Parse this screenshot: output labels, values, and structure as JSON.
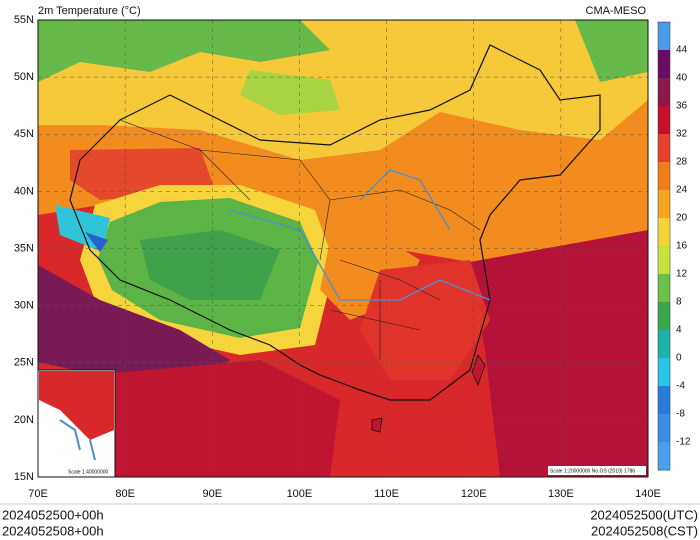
{
  "header": {
    "title": "2m Temperature (°C)",
    "source": "CMA-MESO"
  },
  "map": {
    "lat_labels": [
      "55N",
      "50N",
      "45N",
      "40N",
      "35N",
      "30N",
      "25N",
      "20N",
      "15N"
    ],
    "lon_labels": [
      "70E",
      "80E",
      "90E",
      "100E",
      "110E",
      "120E",
      "130E",
      "140E"
    ],
    "inset_scale": "Scale 1:40000000",
    "scale_note": "Scale 1:20000000 No.GS (2019) 1786"
  },
  "colorbar": {
    "ticks": [
      44,
      40,
      36,
      32,
      28,
      24,
      20,
      16,
      12,
      8,
      4,
      0,
      -4,
      -8,
      -12
    ]
  },
  "footer": {
    "left": [
      "2024052500+00h",
      "2024052508+00h"
    ],
    "right": [
      "2024052500(UTC)",
      "2024052508(CST)"
    ]
  }
}
